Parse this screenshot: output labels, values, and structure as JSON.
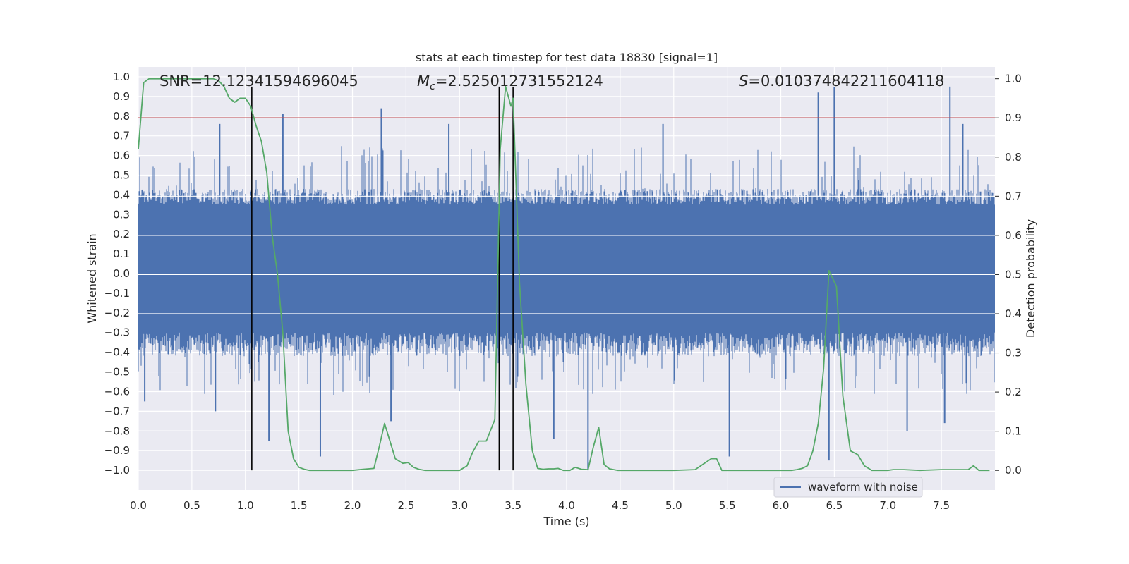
{
  "chart_data": {
    "type": "line",
    "title": "stats at each timestep for test data 18830 [signal=1]",
    "xlabel": "Time (s)",
    "ylabel_left": "Whitened strain",
    "ylabel_right": "Detection probability",
    "xlim": [
      0.0,
      8.0
    ],
    "ylim_left": [
      -1.1,
      1.05
    ],
    "ylim_right": [
      -0.05,
      1.03
    ],
    "xticks": [
      0.0,
      0.5,
      1.0,
      1.5,
      2.0,
      2.5,
      3.0,
      3.5,
      4.0,
      4.5,
      5.0,
      5.5,
      6.0,
      6.5,
      7.0,
      7.5
    ],
    "xtick_labels": [
      "0.0",
      "0.5",
      "1.0",
      "1.5",
      "2.0",
      "2.5",
      "3.0",
      "3.5",
      "4.0",
      "4.5",
      "5.0",
      "5.5",
      "6.0",
      "6.5",
      "7.0",
      "7.5"
    ],
    "yticks_left": [
      1.0,
      0.9,
      0.8,
      0.7,
      0.6,
      0.5,
      0.4,
      0.3,
      0.2,
      0.1,
      0.0,
      -0.1,
      -0.2,
      -0.3,
      -0.4,
      -0.5,
      -0.6,
      -0.7,
      -0.8,
      -0.9,
      -1.0
    ],
    "ytick_labels_left": [
      "1.0",
      "0.9",
      "0.8",
      "0.7",
      "0.6",
      "0.5",
      "0.4",
      "0.3",
      "0.2",
      "0.1",
      "0.0",
      "−0.1",
      "−0.2",
      "−0.3",
      "−0.4",
      "−0.5",
      "−0.6",
      "−0.7",
      "−0.8",
      "−0.9",
      "−1.0"
    ],
    "yticks_right": [
      1.0,
      0.9,
      0.8,
      0.7,
      0.6,
      0.5,
      0.4,
      0.3,
      0.2,
      0.1,
      0.0
    ],
    "ytick_labels_right": [
      "1.0",
      "0.9",
      "0.8",
      "0.7",
      "0.6",
      "0.5",
      "0.4",
      "0.3",
      "0.2",
      "0.1",
      "0.0"
    ],
    "annotations": {
      "snr": "SNR=12.12341594696045",
      "mc_symbol": "M",
      "mc_sub": "c",
      "mc_value": "=2.525012731552124",
      "s_symbol": "S",
      "s_value": "=0.010374842211604118"
    },
    "threshold": {
      "axis": "right",
      "value": 0.9,
      "color": "#c44e52"
    },
    "vertical_markers": [
      {
        "x": 1.06,
        "y_from": -1.0,
        "y_to": 0.95
      },
      {
        "x": 3.37,
        "y_from": -1.0,
        "y_to": 0.95
      },
      {
        "x": 3.5,
        "y_from": -1.0,
        "y_to": 0.95
      }
    ],
    "series": [
      {
        "name": "waveform with noise",
        "axis": "left",
        "color": "#4c72b0",
        "kind": "dense-noise",
        "band_min": -0.42,
        "band_max": 0.43,
        "core_min": -0.3,
        "core_max": 0.35,
        "spikes": [
          {
            "x": 1.35,
            "y": 0.81
          },
          {
            "x": 2.27,
            "y": 0.84
          },
          {
            "x": 6.5,
            "y": 0.95
          },
          {
            "x": 7.58,
            "y": 0.95
          },
          {
            "x": 6.35,
            "y": 0.92
          },
          {
            "x": 0.76,
            "y": 0.76
          },
          {
            "x": 2.9,
            "y": 0.76
          },
          {
            "x": 4.9,
            "y": 0.76
          },
          {
            "x": 7.7,
            "y": 0.76
          },
          {
            "x": 1.22,
            "y": -0.85
          },
          {
            "x": 1.7,
            "y": -0.93
          },
          {
            "x": 4.2,
            "y": -1.0
          },
          {
            "x": 6.45,
            "y": -0.95
          },
          {
            "x": 7.18,
            "y": -0.8
          },
          {
            "x": 7.53,
            "y": -0.76
          },
          {
            "x": 5.52,
            "y": -0.93
          },
          {
            "x": 3.88,
            "y": -0.84
          },
          {
            "x": 2.36,
            "y": -0.75
          },
          {
            "x": 0.06,
            "y": -0.65
          },
          {
            "x": 0.72,
            "y": -0.7
          }
        ]
      },
      {
        "name": "detection probability",
        "axis": "right",
        "color": "#55a868",
        "x": [
          0.0,
          0.05,
          0.1,
          0.15,
          0.2,
          0.3,
          0.4,
          0.5,
          0.6,
          0.7,
          0.75,
          0.8,
          0.85,
          0.9,
          0.95,
          1.0,
          1.05,
          1.1,
          1.15,
          1.2,
          1.25,
          1.3,
          1.35,
          1.4,
          1.45,
          1.5,
          1.55,
          1.6,
          1.7,
          1.8,
          2.0,
          2.1,
          2.2,
          2.25,
          2.3,
          2.4,
          2.47,
          2.52,
          2.57,
          2.62,
          2.68,
          2.75,
          3.0,
          3.07,
          3.12,
          3.18,
          3.25,
          3.33,
          3.38,
          3.43,
          3.48,
          3.5,
          3.56,
          3.62,
          3.68,
          3.73,
          3.78,
          3.83,
          3.88,
          3.92,
          3.97,
          4.03,
          4.08,
          4.14,
          4.2,
          4.25,
          4.3,
          4.35,
          4.4,
          4.48,
          4.53,
          4.58,
          4.64,
          4.7,
          4.8,
          5.0,
          5.2,
          5.35,
          5.4,
          5.45,
          5.5,
          5.55,
          5.65,
          6.0,
          6.1,
          6.15,
          6.2,
          6.25,
          6.3,
          6.35,
          6.4,
          6.45,
          6.52,
          6.58,
          6.65,
          6.72,
          6.78,
          6.85,
          6.9,
          7.0,
          7.05,
          7.15,
          7.3,
          7.5,
          7.7,
          7.75,
          7.8,
          7.85,
          7.95
        ],
        "values": [
          0.82,
          0.99,
          1.0,
          1.0,
          1.0,
          1.0,
          1.0,
          1.0,
          1.0,
          1.0,
          0.995,
          0.98,
          0.95,
          0.94,
          0.95,
          0.95,
          0.93,
          0.88,
          0.84,
          0.76,
          0.6,
          0.5,
          0.35,
          0.1,
          0.03,
          0.008,
          0.003,
          0.0,
          0.0,
          0.0,
          0.0,
          0.003,
          0.005,
          0.06,
          0.12,
          0.03,
          0.018,
          0.02,
          0.008,
          0.003,
          0.0,
          0.0,
          0.0,
          0.012,
          0.045,
          0.075,
          0.075,
          0.13,
          0.82,
          0.98,
          0.93,
          0.95,
          0.48,
          0.22,
          0.05,
          0.005,
          0.003,
          0.004,
          0.004,
          0.005,
          0.0,
          0.0,
          0.008,
          0.003,
          0.002,
          0.06,
          0.11,
          0.015,
          0.004,
          0.0,
          0.0,
          0.0,
          0.0,
          0.0,
          0.0,
          0.0,
          0.002,
          0.03,
          0.03,
          0.0,
          0.0,
          0.0,
          0.0,
          0.0,
          0.0,
          0.002,
          0.005,
          0.012,
          0.05,
          0.12,
          0.26,
          0.51,
          0.47,
          0.19,
          0.05,
          0.04,
          0.012,
          0.0,
          0.0,
          0.0,
          0.002,
          0.002,
          0.0,
          0.002,
          0.002,
          0.002,
          0.012,
          0.0,
          0.0
        ]
      }
    ],
    "legend": {
      "placement": "lower-right",
      "entries": [
        "waveform with noise"
      ]
    }
  }
}
